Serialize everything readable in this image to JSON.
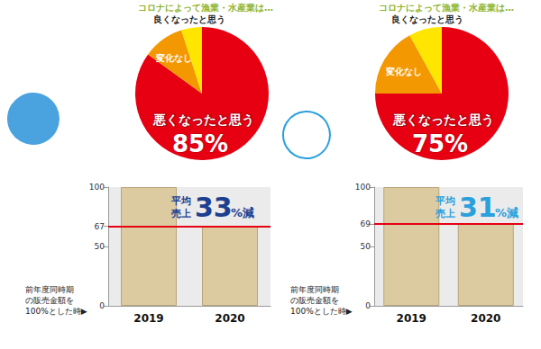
{
  "chart_data": [
    {
      "type": "pie",
      "title": "コロナによって漁業・水産業は…",
      "categories": [
        "悪くなったと思う",
        "変化なし",
        "良くなったと思う"
      ],
      "values": [
        85,
        10,
        5
      ],
      "colors": [
        "#e60012",
        "#f39800",
        "#ffe600"
      ],
      "value_labels": [
        "85%",
        null,
        null
      ]
    },
    {
      "type": "bar",
      "categories": [
        "2019",
        "2020"
      ],
      "values": [
        100,
        67
      ],
      "color": "#dccba0",
      "ylim": [
        0,
        100
      ],
      "yticks": [
        0,
        50,
        67,
        100
      ],
      "grid": false,
      "reference_line": 67,
      "annotation": {
        "lines": [
          "平均",
          "売上"
        ],
        "number": "33",
        "unit": "%減"
      },
      "xlabel": [
        "前年度同時期",
        "の販売金額を",
        "100%とした時▶"
      ]
    },
    {
      "type": "pie",
      "title": "コロナによって漁業・水産業は…",
      "categories": [
        "悪くなったと思う",
        "変化なし",
        "良くなったと思う"
      ],
      "values": [
        75,
        17,
        8
      ],
      "colors": [
        "#e60012",
        "#f39800",
        "#ffe600"
      ],
      "value_labels": [
        "75%",
        null,
        null
      ]
    },
    {
      "type": "bar",
      "categories": [
        "2019",
        "2020"
      ],
      "values": [
        100,
        69
      ],
      "color": "#dccba0",
      "ylim": [
        0,
        100
      ],
      "yticks": [
        0,
        50,
        69,
        100
      ],
      "grid": false,
      "reference_line": 69,
      "annotation": {
        "lines": [
          "平均",
          "売上"
        ],
        "number": "31",
        "unit": "%減"
      },
      "xlabel": [
        "前年度同時期",
        "の販売金額を",
        "100%とした時▶"
      ]
    }
  ]
}
